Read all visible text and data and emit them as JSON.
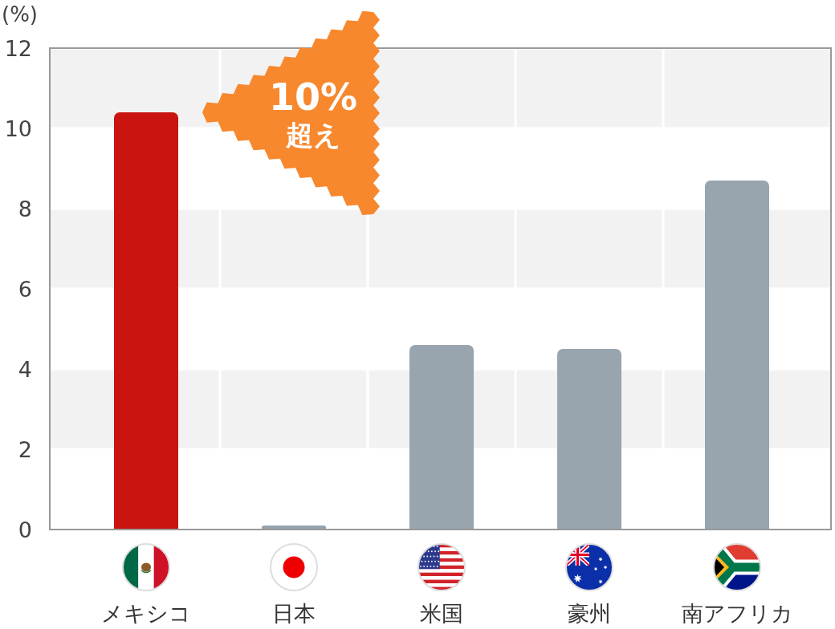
{
  "chart_data": {
    "type": "bar",
    "ylabel": "(%)",
    "categories": [
      "メキシコ",
      "日本",
      "米国",
      "豪州",
      "南アフリカ"
    ],
    "values": [
      10.4,
      0.1,
      4.6,
      4.5,
      8.7
    ],
    "colors": [
      "#c9140f",
      "#98a4ae",
      "#98a4ae",
      "#98a4ae",
      "#98a4ae"
    ],
    "ylim": [
      0,
      12
    ],
    "yticks": [
      0,
      2,
      4,
      6,
      8,
      10,
      12
    ],
    "grid": true,
    "annotations": [
      "10%\n超え"
    ]
  }
}
